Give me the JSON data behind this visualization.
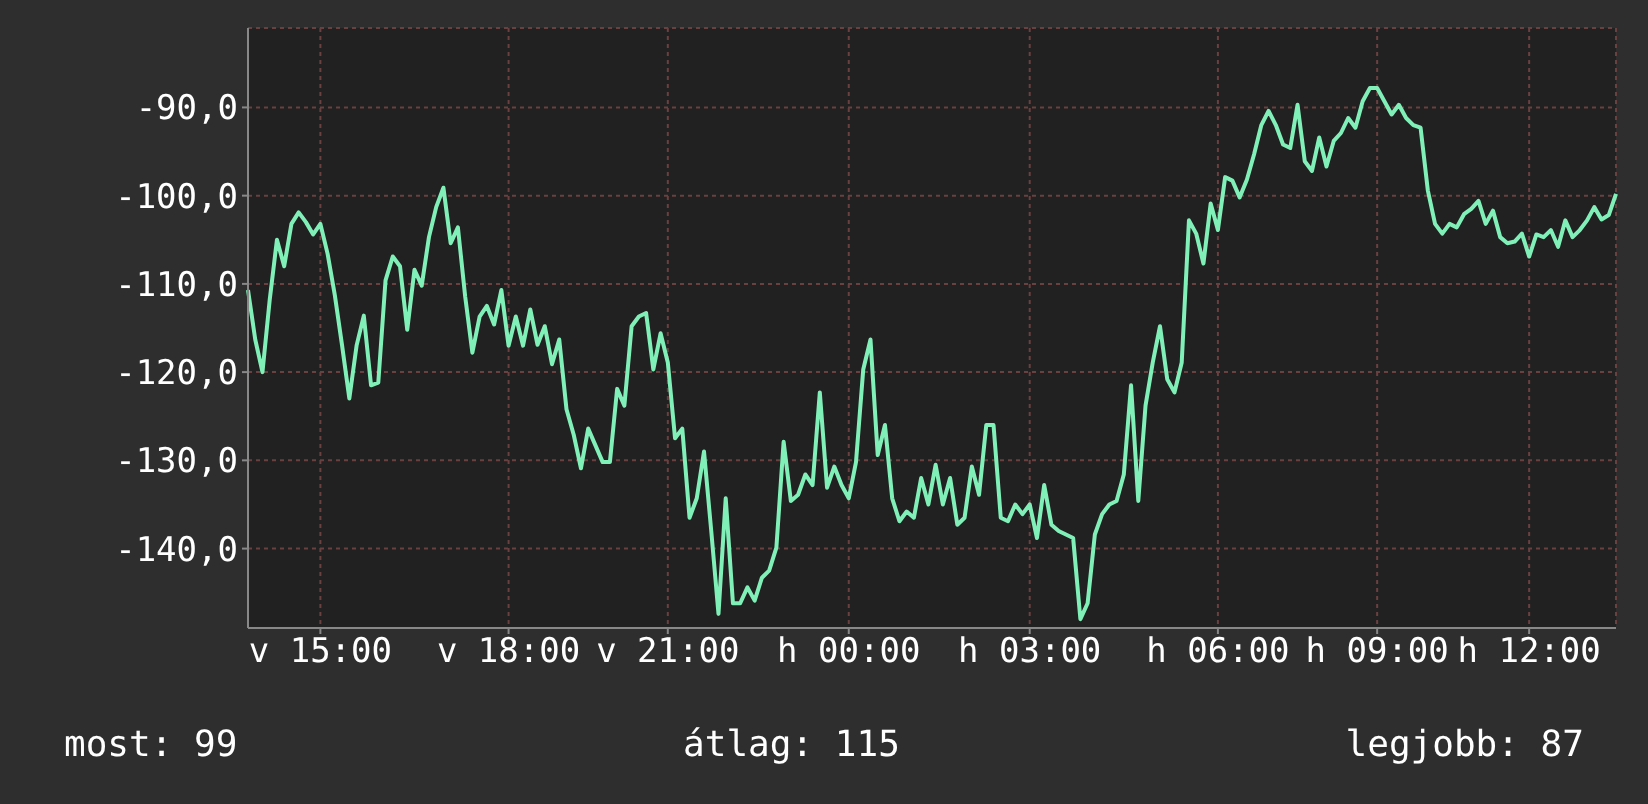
{
  "chart_data": {
    "type": "line",
    "ylim": [
      -149,
      -81
    ],
    "categories": [
      null,
      null,
      null,
      null,
      null,
      null,
      null,
      null,
      null,
      null,
      "v 15:00",
      null,
      null,
      null,
      null,
      null,
      null,
      null,
      null,
      null,
      null,
      null,
      null,
      null,
      null,
      null,
      null,
      null,
      null,
      null,
      null,
      null,
      null,
      null,
      null,
      null,
      "v 18:00",
      null,
      null,
      null,
      null,
      null,
      null,
      null,
      null,
      null,
      null,
      null,
      null,
      null,
      null,
      null,
      null,
      null,
      null,
      null,
      null,
      null,
      "v 21:00",
      null,
      null,
      null,
      null,
      null,
      null,
      null,
      null,
      null,
      null,
      null,
      null,
      null,
      null,
      null,
      null,
      null,
      null,
      null,
      null,
      null,
      null,
      null,
      null,
      "h 00:00",
      null,
      null,
      null,
      null,
      null,
      null,
      null,
      null,
      null,
      null,
      null,
      null,
      null,
      null,
      null,
      null,
      null,
      null,
      null,
      null,
      null,
      null,
      null,
      null,
      "h 03:00",
      null,
      null,
      null,
      null,
      null,
      null,
      null,
      null,
      null,
      null,
      null,
      null,
      null,
      null,
      null,
      null,
      null,
      null,
      null,
      null,
      null,
      null,
      null,
      null,
      null,
      "h 06:00",
      null,
      null,
      null,
      null,
      null,
      null,
      null,
      null,
      null,
      null,
      null,
      null,
      null,
      null,
      null,
      null,
      null,
      null,
      null,
      null,
      null,
      "h 09:00",
      null,
      null,
      null,
      null,
      null,
      null,
      null,
      null,
      null,
      null,
      null,
      null,
      null,
      null,
      null,
      null,
      null,
      null,
      null,
      null,
      "h 12:00",
      null,
      null,
      null,
      null,
      null,
      null,
      null,
      null,
      null,
      null,
      null,
      null
    ],
    "yticks": [
      {
        "value": -140,
        "label": "-140,0"
      },
      {
        "value": -130,
        "label": "-130,0"
      },
      {
        "value": -120,
        "label": "-120,0"
      },
      {
        "value": -110,
        "label": "-110,0"
      },
      {
        "value": -100,
        "label": "-100,0"
      },
      {
        "value": -90,
        "label": "-90,0"
      }
    ],
    "grid": true,
    "annotations": [
      "most: 99",
      "átlag: 115",
      "legjobb: 87"
    ],
    "series": [
      {
        "color": "#80f0b8",
        "values": [
          -110.7,
          -116.3,
          -120,
          -111.8,
          -105,
          -108,
          -103.2,
          -101.9,
          -103,
          -104.4,
          -103.2,
          -106.6,
          -111.3,
          -117,
          -123,
          -117,
          -113.6,
          -121.5,
          -121.2,
          -109.6,
          -106.9,
          -108,
          -115.2,
          -108.4,
          -110.2,
          -104.7,
          -101.3,
          -99.1,
          -105.4,
          -103.6,
          -111.4,
          -117.8,
          -113.7,
          -112.5,
          -114.6,
          -110.7,
          -117,
          -113.7,
          -117,
          -112.9,
          -116.9,
          -114.8,
          -119.1,
          -116.3,
          -124.2,
          -127.1,
          -130.9,
          -126.4,
          -128.3,
          -130.2,
          -130.2,
          -121.9,
          -123.8,
          -114.8,
          -113.7,
          -113.3,
          -119.7,
          -115.6,
          -118.9,
          -127.5,
          -126.4,
          -136.5,
          -134.3,
          -129,
          -138,
          -147.4,
          -134.3,
          -146.2,
          -146.2,
          -144.4,
          -145.9,
          -143.3,
          -142.5,
          -139.9,
          -127.9,
          -134.6,
          -133.9,
          -131.6,
          -132.8,
          -122.3,
          -133.1,
          -130.7,
          -132.8,
          -134.3,
          -130.2,
          -119.7,
          -116.3,
          -129.4,
          -126,
          -134.3,
          -136.9,
          -135.8,
          -136.5,
          -132,
          -135,
          -130.5,
          -135,
          -132,
          -137.3,
          -136.5,
          -130.7,
          -133.9,
          -126,
          -126,
          -136.5,
          -136.9,
          -135,
          -136.1,
          -135,
          -138.8,
          -132.8,
          -137.3,
          -138,
          -138.4,
          -138.8,
          -148,
          -146.2,
          -138.4,
          -136.1,
          -135,
          -134.6,
          -131.6,
          -121.5,
          -134.6,
          -123.8,
          -118.9,
          -114.8,
          -120.8,
          -122.3,
          -118.9,
          -102.8,
          -104.3,
          -107.7,
          -100.9,
          -103.9,
          -97.9,
          -98.3,
          -100.2,
          -98.2,
          -95.3,
          -92,
          -90.4,
          -92,
          -94.2,
          -94.6,
          -89.7,
          -96.1,
          -97.2,
          -93.4,
          -96.7,
          -93.8,
          -92.9,
          -91.2,
          -92.3,
          -89.3,
          -87.8,
          -87.8,
          -89.3,
          -90.8,
          -89.7,
          -91.2,
          -92,
          -92.3,
          -99.4,
          -103.2,
          -104.3,
          -103.2,
          -103.6,
          -102.1,
          -101.5,
          -100.6,
          -103.2,
          -101.7,
          -104.7,
          -105.4,
          -105.2,
          -104.3,
          -106.9,
          -104.4,
          -104.7,
          -103.9,
          -105.8,
          -102.8,
          -104.7,
          -103.9,
          -102.8,
          -101.3,
          -102.7,
          -102.2,
          -99.8
        ]
      }
    ]
  }
}
